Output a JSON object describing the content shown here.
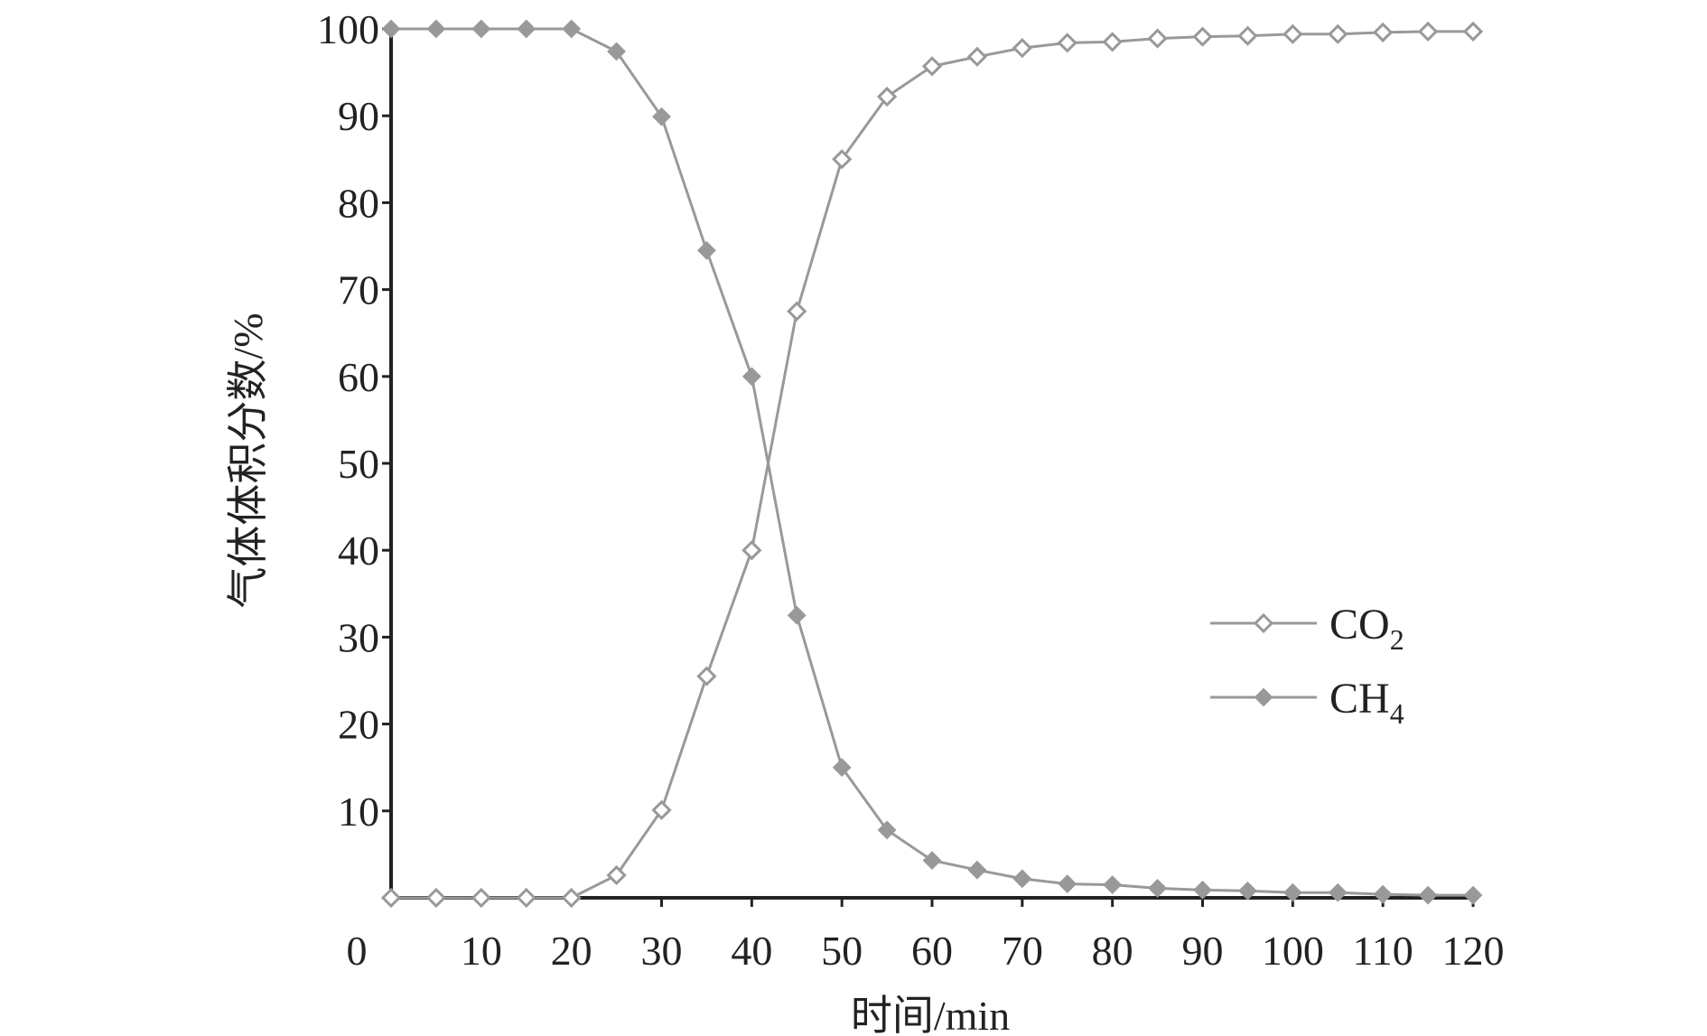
{
  "chart_data": {
    "type": "line",
    "xlabel": "时间/min",
    "ylabel": "气体体积分数/%",
    "xlim": [
      0,
      120
    ],
    "ylim": [
      0,
      100
    ],
    "x_ticks": [
      {
        "value": 0,
        "label": "0"
      },
      {
        "value": 10,
        "label": "10"
      },
      {
        "value": 20,
        "label": "20"
      },
      {
        "value": 30,
        "label": "30"
      },
      {
        "value": 40,
        "label": "40"
      },
      {
        "value": 50,
        "label": "50"
      },
      {
        "value": 60,
        "label": "60"
      },
      {
        "value": 70,
        "label": "70"
      },
      {
        "value": 80,
        "label": "80"
      },
      {
        "value": 90,
        "label": "90"
      },
      {
        "value": 100,
        "label": "100"
      },
      {
        "value": 110,
        "label": "110"
      },
      {
        "value": 120,
        "label": "120"
      }
    ],
    "y_ticks": [
      {
        "value": 10,
        "label": "10"
      },
      {
        "value": 20,
        "label": "20"
      },
      {
        "value": 30,
        "label": "30"
      },
      {
        "value": 40,
        "label": "40"
      },
      {
        "value": 50,
        "label": "50"
      },
      {
        "value": 60,
        "label": "60"
      },
      {
        "value": 70,
        "label": "70"
      },
      {
        "value": 80,
        "label": "80"
      },
      {
        "value": 90,
        "label": "90"
      },
      {
        "value": 100,
        "label": "100"
      }
    ],
    "grid": false,
    "legend_position": "right-middle",
    "x": [
      0,
      5,
      10,
      15,
      20,
      25,
      30,
      35,
      40,
      45,
      50,
      55,
      60,
      65,
      70,
      75,
      80,
      85,
      90,
      95,
      100,
      105,
      110,
      115,
      120
    ],
    "series": [
      {
        "name": "CO",
        "name_subscript": "2",
        "marker": "open-diamond",
        "color": "#999999",
        "values": [
          0,
          0,
          0,
          0,
          0,
          2.6,
          10.1,
          25.5,
          40,
          67.5,
          85,
          92.2,
          95.7,
          96.8,
          97.8,
          98.4,
          98.5,
          98.9,
          99.1,
          99.2,
          99.4,
          99.4,
          99.6,
          99.7,
          99.7
        ]
      },
      {
        "name": "CH",
        "name_subscript": "4",
        "marker": "filled-diamond",
        "color": "#999999",
        "values": [
          100,
          100,
          100,
          100,
          100,
          97.4,
          89.9,
          74.5,
          60,
          32.5,
          15,
          7.8,
          4.3,
          3.2,
          2.2,
          1.6,
          1.5,
          1.1,
          0.9,
          0.8,
          0.6,
          0.6,
          0.4,
          0.3,
          0.3
        ]
      }
    ]
  }
}
